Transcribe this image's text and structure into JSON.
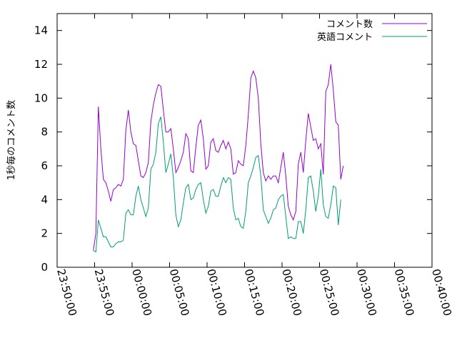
{
  "chart_data": {
    "type": "line",
    "title": "",
    "xlabel": "",
    "ylabel": "1秒毎のコメント数",
    "x_start": "23:50:00",
    "x_step_seconds": 20,
    "x_ticks": [
      "23:50:00",
      "23:55:00",
      "00:00:00",
      "00:05:00",
      "00:10:00",
      "00:15:00",
      "00:20:00",
      "00:25:00",
      "00:30:00",
      "00:35:00",
      "00:40:00"
    ],
    "ylim": [
      0,
      15
    ],
    "y_ticks": [
      0,
      2,
      4,
      6,
      8,
      10,
      12,
      14
    ],
    "legend_position": "top-right",
    "grid": false,
    "series": [
      {
        "name": "コメント数",
        "color": "#9400d3",
        "start_time": "23:54:50",
        "values": [
          1.0,
          2.0,
          9.5,
          7.0,
          5.2,
          5.0,
          4.5,
          3.9,
          4.6,
          4.7,
          4.9,
          4.8,
          5.2,
          8.1,
          9.3,
          8.0,
          7.3,
          7.2,
          6.3,
          5.4,
          5.3,
          5.6,
          6.2,
          8.6,
          9.6,
          10.3,
          10.8,
          10.7,
          9.3,
          8.0,
          8.0,
          8.2,
          7.0,
          5.6,
          5.9,
          6.3,
          6.8,
          7.9,
          7.6,
          5.7,
          5.6,
          7.1,
          8.4,
          8.7,
          7.6,
          5.8,
          6.0,
          7.4,
          7.6,
          6.9,
          6.8,
          7.2,
          7.5,
          7.0,
          7.4,
          7.0,
          5.5,
          5.6,
          6.3,
          6.1,
          6.0,
          7.2,
          9.0,
          11.2,
          11.6,
          11.2,
          10.0,
          7.3,
          5.6,
          5.1,
          5.4,
          5.2,
          5.4,
          5.4,
          5.0,
          5.9,
          6.8,
          5.4,
          3.6,
          3.1,
          2.8,
          3.3,
          6.1,
          6.8,
          5.6,
          7.5,
          9.1,
          8.3,
          7.5,
          7.6,
          7.0,
          7.3,
          5.5,
          10.4,
          10.8,
          12.0,
          10.5,
          8.6,
          8.4,
          5.2,
          6.0
        ]
      },
      {
        "name": "英語コメント",
        "color": "#009e73",
        "start_time": "23:54:50",
        "values": [
          1.0,
          0.9,
          2.8,
          2.3,
          1.8,
          1.8,
          1.5,
          1.2,
          1.2,
          1.4,
          1.5,
          1.5,
          1.6,
          3.2,
          3.4,
          3.1,
          3.1,
          4.2,
          4.8,
          4.0,
          3.5,
          3.0,
          3.5,
          5.8,
          6.1,
          6.8,
          8.5,
          8.9,
          7.4,
          5.6,
          6.1,
          6.7,
          5.3,
          3.1,
          2.4,
          2.8,
          3.8,
          4.7,
          4.9,
          4.0,
          4.1,
          4.6,
          4.9,
          5.0,
          4.0,
          3.2,
          3.6,
          4.5,
          4.6,
          4.2,
          4.2,
          4.8,
          5.3,
          5.0,
          5.3,
          5.2,
          3.5,
          2.8,
          2.9,
          2.4,
          2.3,
          3.3,
          5.0,
          5.4,
          5.9,
          6.5,
          6.6,
          5.4,
          3.4,
          3.0,
          2.6,
          2.9,
          3.4,
          3.5,
          4.0,
          4.2,
          4.3,
          3.0,
          1.7,
          1.8,
          1.7,
          1.7,
          2.7,
          2.7,
          2.0,
          3.4,
          5.3,
          5.4,
          4.5,
          3.3,
          4.2,
          5.8,
          3.7,
          3.0,
          2.9,
          3.7,
          4.8,
          4.7,
          2.5,
          4.0
        ]
      }
    ]
  }
}
